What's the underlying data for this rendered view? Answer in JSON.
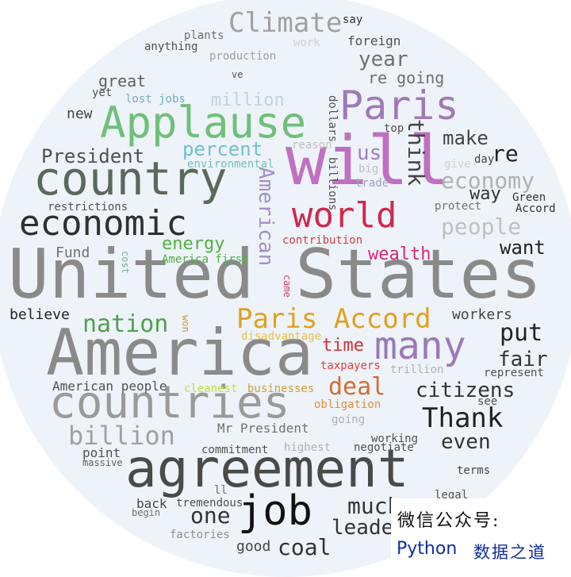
{
  "words": [
    {
      "text": "United States",
      "color": "#8a8a8a"
    },
    {
      "text": "America",
      "color": "#8a8a8a"
    },
    {
      "text": "agreement",
      "color": "#4a4a4a"
    },
    {
      "text": "countries",
      "color": "#9a9a9a"
    },
    {
      "text": "country",
      "color": "#5a6a5a"
    },
    {
      "text": "Applause",
      "color": "#6fc07a"
    },
    {
      "text": "will",
      "color": "#c070c0"
    },
    {
      "text": "world",
      "color": "#d0284c"
    },
    {
      "text": "Paris",
      "color": "#a079b8"
    },
    {
      "text": "economic",
      "color": "#2f2f2f"
    },
    {
      "text": "many",
      "color": "#9a7ab8"
    },
    {
      "text": "Paris Accord",
      "color": "#e0a020"
    },
    {
      "text": "job",
      "color": "#111111"
    },
    {
      "text": "Climate",
      "color": "#a0a0a0"
    },
    {
      "text": "billion",
      "color": "#a0a0a0"
    },
    {
      "text": "nation",
      "color": "#50a050"
    },
    {
      "text": "deal",
      "color": "#d07030"
    },
    {
      "text": "Thank",
      "color": "#222222"
    },
    {
      "text": "citizens",
      "color": "#333333"
    },
    {
      "text": "coal",
      "color": "#333333"
    },
    {
      "text": "people",
      "color": "#c0c0c0"
    },
    {
      "text": "economy",
      "color": "#b0b0b0"
    },
    {
      "text": "President",
      "color": "#505050"
    },
    {
      "text": "percent",
      "color": "#70c0d0"
    },
    {
      "text": "million",
      "color": "#c0d0e0"
    },
    {
      "text": "think",
      "color": "#444444"
    },
    {
      "text": "make",
      "color": "#444444"
    },
    {
      "text": "re",
      "color": "#222222"
    },
    {
      "text": "us",
      "color": "#a080c0"
    },
    {
      "text": "year",
      "color": "#707070"
    },
    {
      "text": "re going",
      "color": "#707070"
    },
    {
      "text": "great",
      "color": "#606060"
    },
    {
      "text": "new",
      "color": "#444444"
    },
    {
      "text": "energy",
      "color": "#50b040"
    },
    {
      "text": "wealth",
      "color": "#d8287a"
    },
    {
      "text": "want",
      "color": "#222222"
    },
    {
      "text": "put",
      "color": "#222222"
    },
    {
      "text": "fair",
      "color": "#333333"
    },
    {
      "text": "way",
      "color": "#333333"
    },
    {
      "text": "time",
      "color": "#d83030"
    },
    {
      "text": "even",
      "color": "#333333"
    },
    {
      "text": "one",
      "color": "#333333"
    },
    {
      "text": "much",
      "color": "#333333"
    },
    {
      "text": "leader",
      "color": "#333333"
    },
    {
      "text": "American",
      "color": "#a090c8"
    },
    {
      "text": "Fund",
      "color": "#707070"
    },
    {
      "text": "believe",
      "color": "#222222"
    },
    {
      "text": "workers",
      "color": "#444444"
    },
    {
      "text": "American people",
      "color": "#505050"
    },
    {
      "text": "Mr President",
      "color": "#707070"
    },
    {
      "text": "point",
      "color": "#505050"
    },
    {
      "text": "massive",
      "color": "#606060"
    },
    {
      "text": "commitment",
      "color": "#505050"
    },
    {
      "text": "working",
      "color": "#505050"
    },
    {
      "text": "negotiate",
      "color": "#505050"
    },
    {
      "text": "good",
      "color": "#444444"
    },
    {
      "text": "back",
      "color": "#444444"
    },
    {
      "text": "begin",
      "color": "#707070"
    },
    {
      "text": "tremendous",
      "color": "#505050"
    },
    {
      "text": "factories",
      "color": "#909090"
    },
    {
      "text": "highest",
      "color": "#b0b0b0"
    },
    {
      "text": "going",
      "color": "#b0b0b0"
    },
    {
      "text": "ll",
      "color": "#707070"
    },
    {
      "text": "ve",
      "color": "#505050"
    },
    {
      "text": "terms",
      "color": "#444444"
    },
    {
      "text": "legal",
      "color": "#505050"
    },
    {
      "text": "see",
      "color": "#505050"
    },
    {
      "text": "represent",
      "color": "#505050"
    },
    {
      "text": "trillion",
      "color": "#b0b0b0"
    },
    {
      "text": "taxpayers",
      "color": "#e04040"
    },
    {
      "text": "obligation",
      "color": "#e09040"
    },
    {
      "text": "businesses",
      "color": "#d0a040"
    },
    {
      "text": "cleanest",
      "color": "#c0e040"
    },
    {
      "text": "disadvantage",
      "color": "#f0c040"
    },
    {
      "text": "won",
      "color": "#c0a040"
    },
    {
      "text": "America first",
      "color": "#50b040"
    },
    {
      "text": "cost",
      "color": "#70b0a0"
    },
    {
      "text": "contribution",
      "color": "#d04040"
    },
    {
      "text": "came",
      "color": "#d04060"
    },
    {
      "text": "restrictions",
      "color": "#505050"
    },
    {
      "text": "environmental",
      "color": "#70c0c0"
    },
    {
      "text": "reason",
      "color": "#c0c0c0"
    },
    {
      "text": "billions",
      "color": "#505050"
    },
    {
      "text": "dollars",
      "color": "#505050"
    },
    {
      "text": "big",
      "color": "#c0c0c0"
    },
    {
      "text": "trade",
      "color": "#a0a0c0"
    },
    {
      "text": "top",
      "color": "#505050"
    },
    {
      "text": "give",
      "color": "#d0d0d0"
    },
    {
      "text": "day",
      "color": "#444444"
    },
    {
      "text": "protect",
      "color": "#707070"
    },
    {
      "text": "Green",
      "color": "#333333"
    },
    {
      "text": "Accord",
      "color": "#333333"
    },
    {
      "text": "say",
      "color": "#333333"
    },
    {
      "text": "foreign",
      "color": "#505050"
    },
    {
      "text": "work",
      "color": "#d0d0d0"
    },
    {
      "text": "plants",
      "color": "#707070"
    },
    {
      "text": "anything",
      "color": "#505050"
    },
    {
      "text": "production",
      "color": "#a0a0a0"
    },
    {
      "text": "yet",
      "color": "#505050"
    },
    {
      "text": "lost jobs",
      "color": "#70b0c0"
    }
  ],
  "watermark": {
    "line1": "微信公众号:",
    "line2_latin": "Python",
    "line2_cjk": "数据之道"
  }
}
